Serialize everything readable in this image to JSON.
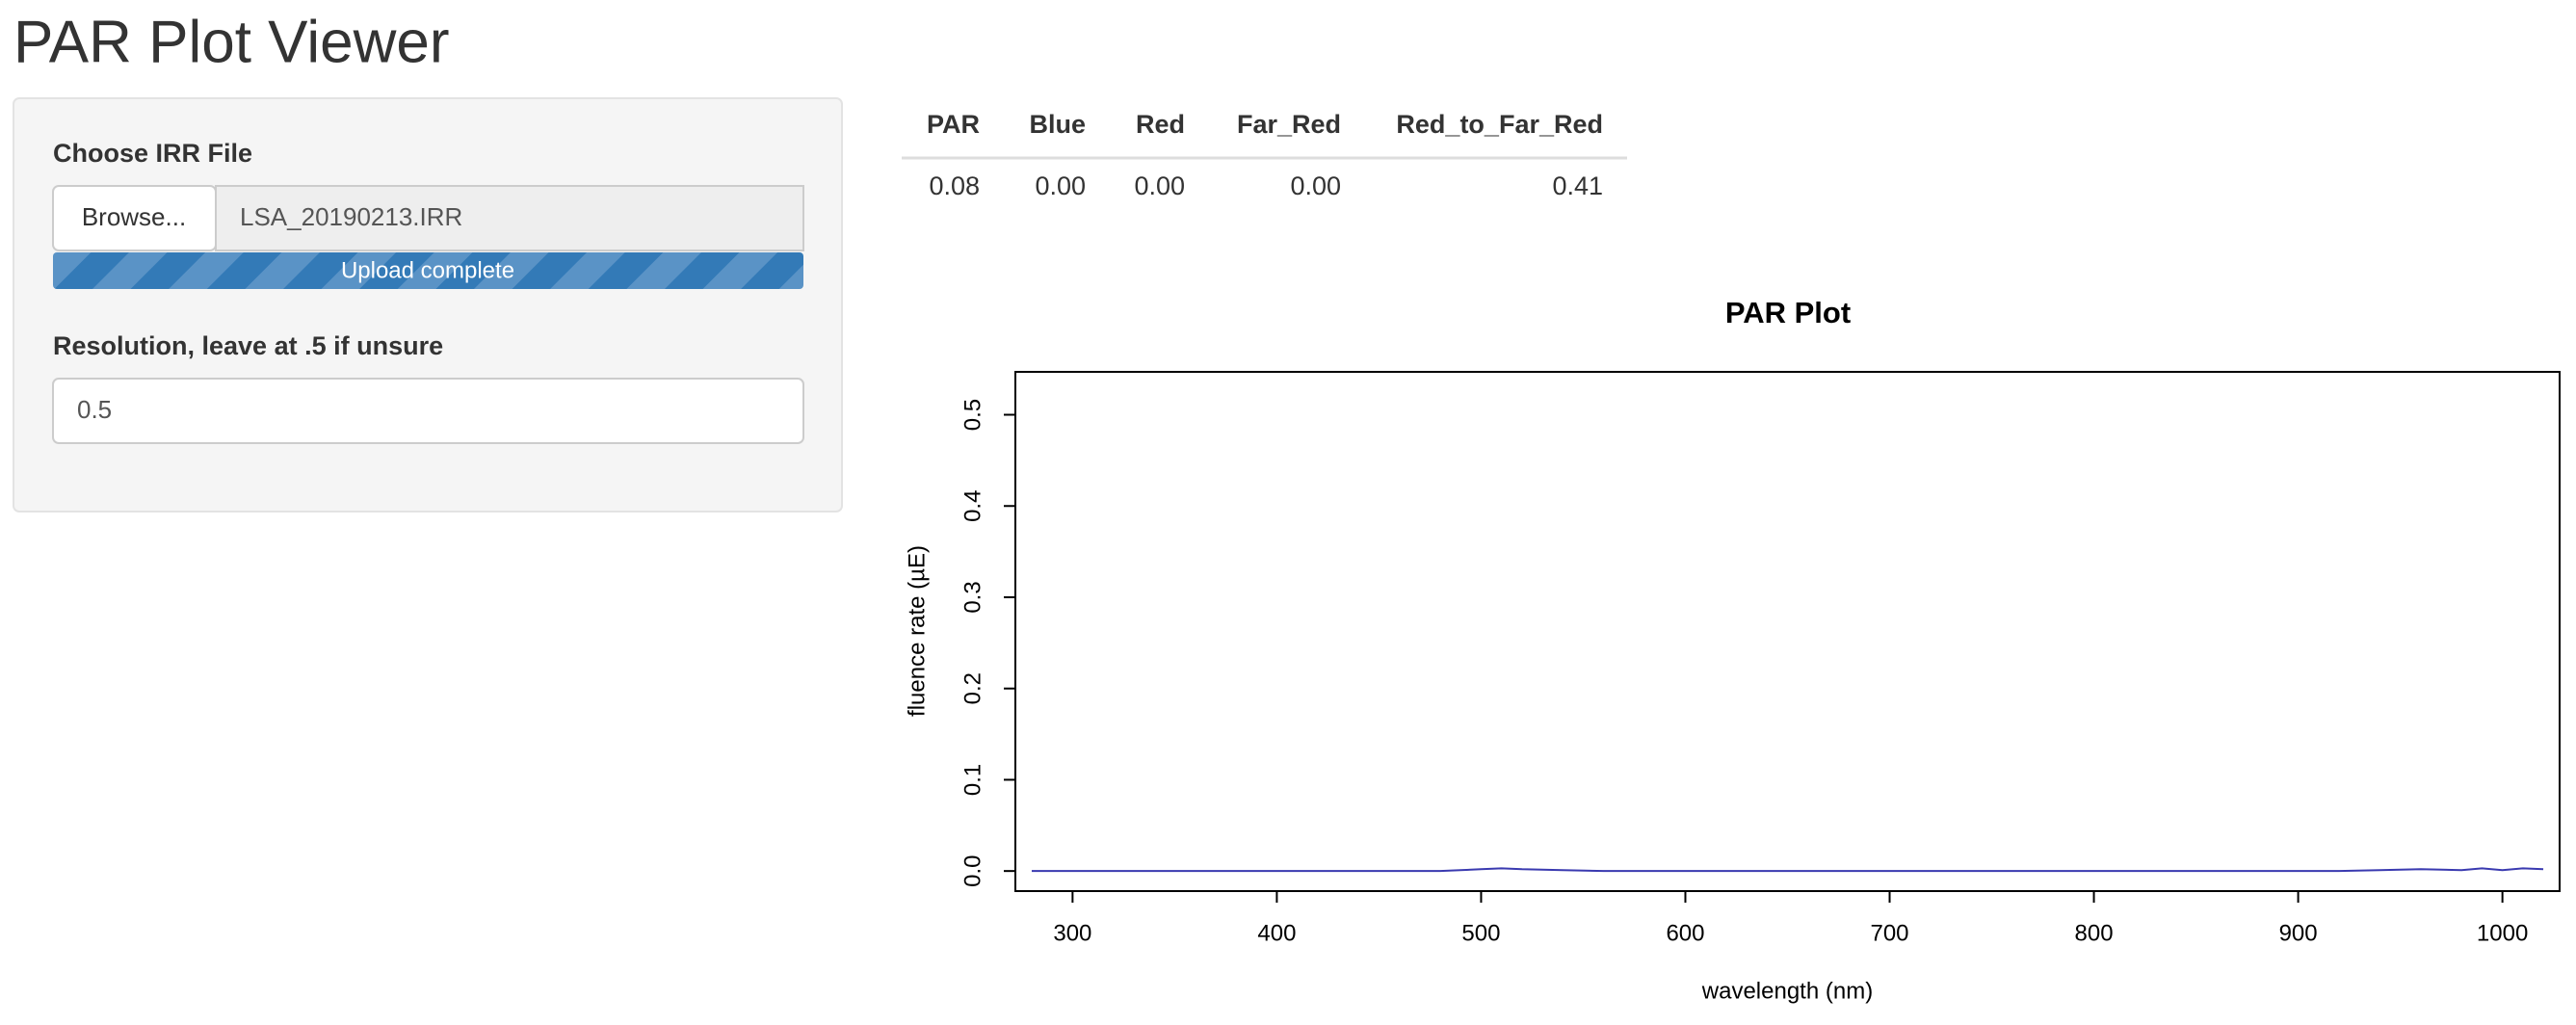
{
  "header": {
    "title": "PAR Plot Viewer"
  },
  "sidebar": {
    "file_label": "Choose IRR File",
    "browse_button": "Browse...",
    "file_name": "LSA_20190213.IRR",
    "progress": "Upload complete",
    "resolution_label": "Resolution, leave at .5 if unsure",
    "resolution_value": "0.5"
  },
  "table": {
    "columns": [
      "PAR",
      "Blue",
      "Red",
      "Far_Red",
      "Red_to_Far_Red"
    ],
    "rows": [
      [
        "0.08",
        "0.00",
        "0.00",
        "0.00",
        "0.41"
      ]
    ]
  },
  "chart_data": {
    "type": "line",
    "title": "PAR Plot",
    "xlabel": "wavelength (nm)",
    "ylabel": "fluence rate (µE)",
    "color": "#3a3ab0",
    "x": [
      280,
      300,
      320,
      340,
      360,
      380,
      400,
      420,
      440,
      460,
      480,
      500,
      510,
      520,
      540,
      560,
      580,
      600,
      620,
      640,
      660,
      680,
      700,
      720,
      740,
      760,
      780,
      800,
      820,
      840,
      860,
      880,
      900,
      920,
      940,
      960,
      980,
      990,
      1000,
      1010,
      1020
    ],
    "values": [
      0,
      0,
      0,
      0,
      0,
      0,
      0,
      0,
      0,
      0,
      0,
      0.002,
      0.003,
      0.002,
      0.001,
      0,
      0,
      0,
      0,
      0,
      0,
      0,
      0,
      0,
      0,
      0,
      0,
      0,
      0,
      0,
      0,
      0,
      0,
      0,
      0.001,
      0.002,
      0.001,
      0.003,
      0.001,
      0.003,
      0.002
    ],
    "xlim": [
      272,
      1028
    ],
    "ylim": [
      -0.022,
      0.547
    ],
    "xticks": [
      300,
      400,
      500,
      600,
      700,
      800,
      900,
      1000
    ],
    "yticks": [
      {
        "value": 0,
        "label": "0.0"
      },
      0.1,
      0.2,
      0.3,
      0.4,
      0.5
    ],
    "grid": false
  }
}
